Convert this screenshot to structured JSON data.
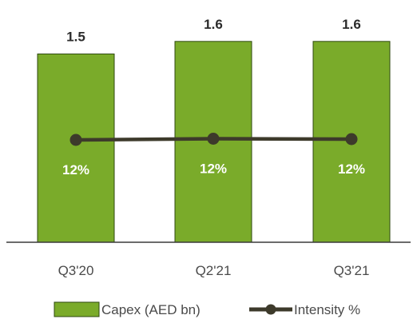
{
  "chart_data": {
    "type": "bar",
    "categories": [
      "Q3'20",
      "Q2'21",
      "Q3'21"
    ],
    "series": [
      {
        "name": "Capex (AED bn)",
        "type": "bar",
        "values": [
          1.5,
          1.6,
          1.6
        ],
        "data_labels": [
          "1.5",
          "1.6",
          "1.6"
        ],
        "color": "#7aab2a",
        "border_color": "#2f4a10"
      },
      {
        "name": "Intensity %",
        "type": "line",
        "values": [
          12,
          12.3,
          12.2
        ],
        "data_labels": [
          "12%",
          "12%",
          "12%"
        ],
        "color": "#3d3a2b",
        "label_color": "#ffffff"
      }
    ],
    "legend_position": "bottom",
    "grid": false
  }
}
